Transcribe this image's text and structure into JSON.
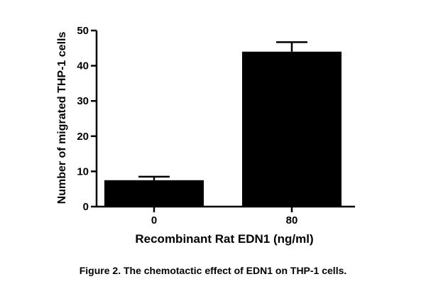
{
  "chart_data": {
    "type": "bar",
    "categories": [
      "0",
      "80"
    ],
    "values": [
      7.5,
      44
    ],
    "errors": [
      1,
      2.7
    ],
    "xlabel": "Recombinant Rat EDN1 (ng/ml)",
    "ylabel": "Number of migrated THP-1 cells",
    "ylim": [
      0,
      50
    ],
    "yticks": [
      0,
      10,
      20,
      30,
      40,
      50
    ],
    "grid": false,
    "bar_color": "#000000"
  },
  "caption": "Figure 2. The chemotactic effect of EDN1 on THP-1 cells."
}
